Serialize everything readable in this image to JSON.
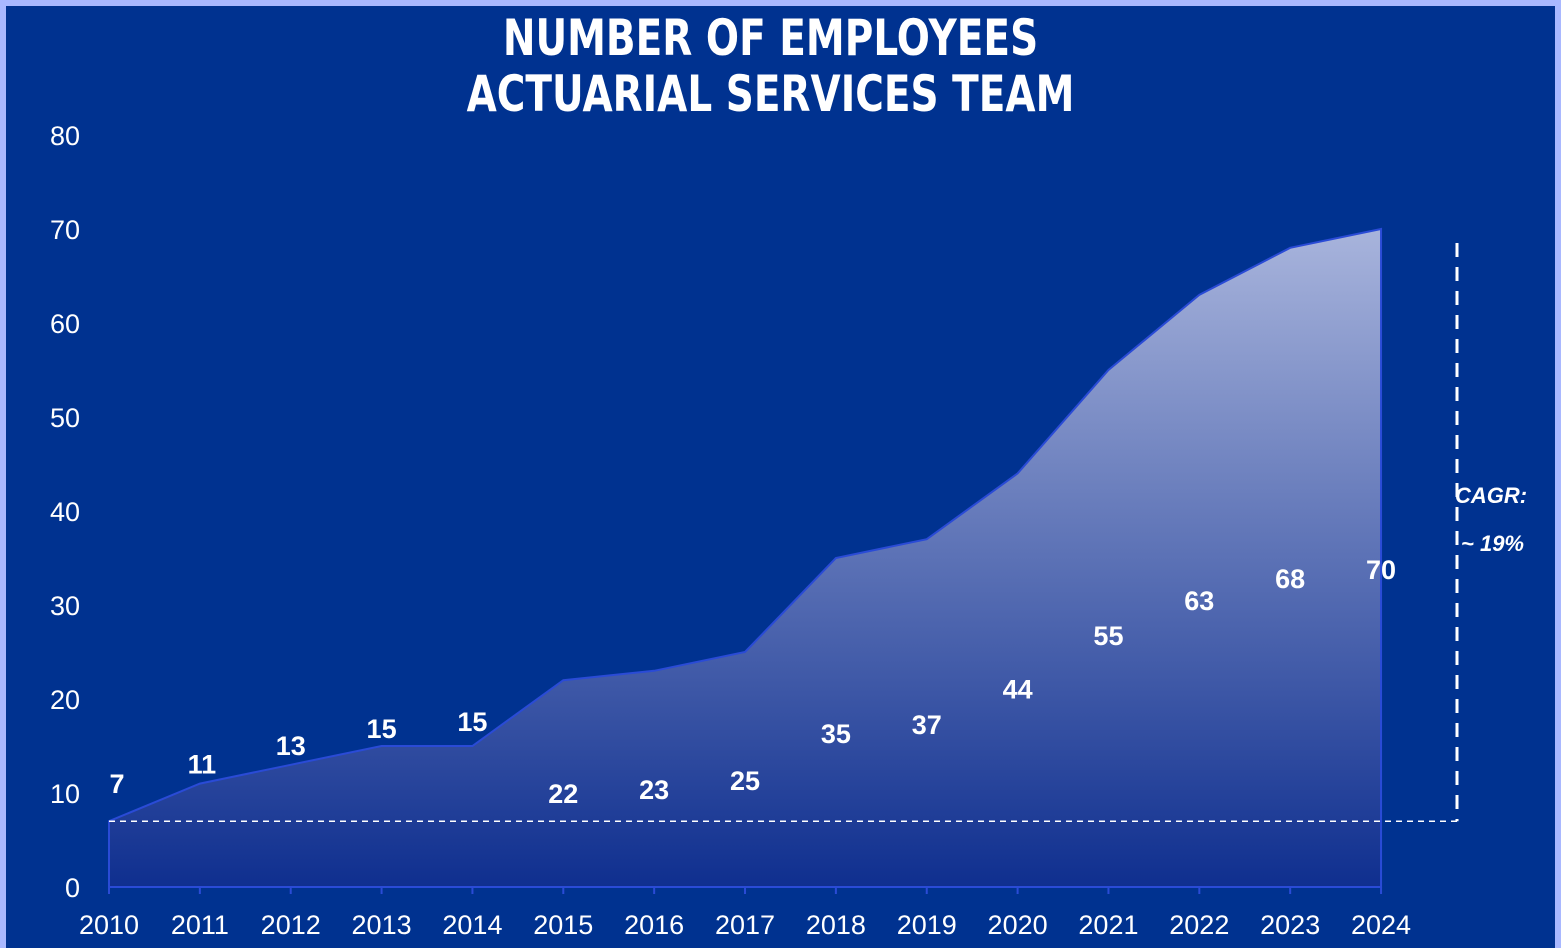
{
  "chart_data": {
    "type": "area",
    "title": [
      "NUMBER OF EMPLOYEES",
      "ACTUARIAL SERVICES TEAM"
    ],
    "categories": [
      "2010",
      "2011",
      "2012",
      "2013",
      "2014",
      "2015",
      "2016",
      "2017",
      "2018",
      "2019",
      "2020",
      "2021",
      "2022",
      "2023",
      "2024"
    ],
    "series": [
      {
        "values": [
          7,
          11,
          13,
          15,
          15,
          22,
          23,
          25,
          35,
          37,
          44,
          55,
          63,
          68,
          70
        ]
      }
    ],
    "data_labels": [
      "7",
      "11",
      "13",
      "15",
      "15",
      "22",
      "23",
      "25",
      "35",
      "37",
      "44",
      "55",
      "63",
      "68",
      "70"
    ],
    "ylim": [
      0,
      80
    ],
    "yticks": [
      0,
      10,
      20,
      30,
      40,
      50,
      60,
      70,
      80
    ],
    "xlabel": "",
    "ylabel": "",
    "grid": false,
    "legend": "none",
    "annotation": {
      "line1": "CAGR:",
      "line2": "~ 19%"
    },
    "colors": {
      "background": "#003290",
      "border": "#a9b8ff",
      "fill_top": "#a8b4dc",
      "fill_bottom": "#0f2f8f",
      "line": "#2a4bd6",
      "text": "#ffffff"
    }
  }
}
